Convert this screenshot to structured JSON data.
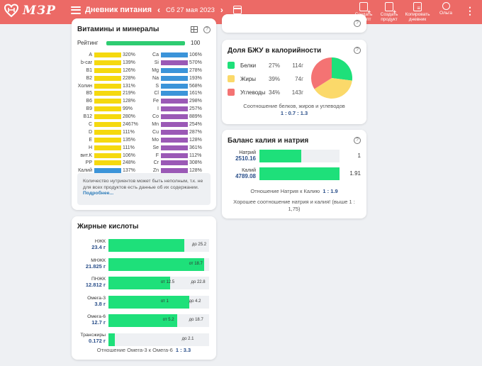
{
  "app": {
    "logo_text": "МЗР",
    "page_title": "Дневник питания",
    "date": "Сб 27 мая 2023"
  },
  "actions": [
    {
      "label": "Создать рецепт",
      "icon": "create-recipe-icon"
    },
    {
      "label": "Создать продукт",
      "icon": "create-product-icon"
    },
    {
      "label": "Копировать дневник",
      "icon": "copy-diary-icon"
    },
    {
      "label": "Ольга",
      "icon": "user-icon"
    }
  ],
  "vitamins": {
    "title": "Витамины и минералы",
    "rating_label": "Рейтинг",
    "rating_value": "100",
    "rating_fraction": 1.0,
    "left": [
      {
        "name": "A",
        "pct": "320%",
        "color": "#f5d90f"
      },
      {
        "name": "b-car",
        "pct": "139%",
        "color": "#f5d90f"
      },
      {
        "name": "B1",
        "pct": "126%",
        "color": "#f5d90f"
      },
      {
        "name": "B2",
        "pct": "228%",
        "color": "#f5d90f"
      },
      {
        "name": "Холин",
        "pct": "131%",
        "color": "#f5d90f"
      },
      {
        "name": "B5",
        "pct": "219%",
        "color": "#f5d90f"
      },
      {
        "name": "B6",
        "pct": "128%",
        "color": "#f5d90f"
      },
      {
        "name": "B9",
        "pct": "99%",
        "color": "#f5d90f"
      },
      {
        "name": "B12",
        "pct": "280%",
        "color": "#f5d90f"
      },
      {
        "name": "C",
        "pct": "2467%",
        "color": "#f5d90f"
      },
      {
        "name": "D",
        "pct": "111%",
        "color": "#f5d90f"
      },
      {
        "name": "E",
        "pct": "135%",
        "color": "#f5d90f"
      },
      {
        "name": "H",
        "pct": "111%",
        "color": "#f5d90f"
      },
      {
        "name": "вит.K",
        "pct": "106%",
        "color": "#f5d90f"
      },
      {
        "name": "PP",
        "pct": "248%",
        "color": "#f5d90f"
      },
      {
        "name": "Калий",
        "pct": "137%",
        "color": "#3b94d9"
      }
    ],
    "right": [
      {
        "name": "Ca",
        "pct": "106%",
        "color": "#3b94d9"
      },
      {
        "name": "Si",
        "pct": "570%",
        "color": "#9b59b6"
      },
      {
        "name": "Mg",
        "pct": "278%",
        "color": "#3b94d9"
      },
      {
        "name": "Na",
        "pct": "193%",
        "color": "#3b94d9"
      },
      {
        "name": "S",
        "pct": "568%",
        "color": "#3b94d9"
      },
      {
        "name": "Cl",
        "pct": "161%",
        "color": "#3b94d9"
      },
      {
        "name": "Fe",
        "pct": "298%",
        "color": "#9b59b6"
      },
      {
        "name": "I",
        "pct": "257%",
        "color": "#9b59b6"
      },
      {
        "name": "Co",
        "pct": "889%",
        "color": "#9b59b6"
      },
      {
        "name": "Mn",
        "pct": "254%",
        "color": "#9b59b6"
      },
      {
        "name": "Cu",
        "pct": "287%",
        "color": "#9b59b6"
      },
      {
        "name": "Mo",
        "pct": "128%",
        "color": "#9b59b6"
      },
      {
        "name": "Se",
        "pct": "361%",
        "color": "#9b59b6"
      },
      {
        "name": "F",
        "pct": "112%",
        "color": "#9b59b6"
      },
      {
        "name": "Cr",
        "pct": "308%",
        "color": "#9b59b6"
      },
      {
        "name": "Zn",
        "pct": "128%",
        "color": "#9b59b6"
      }
    ],
    "note_text": "Количество нутриентов может быть неполным, т.к. не для всех продуктов есть данные об их содержании.",
    "note_link": "Подробнее..."
  },
  "fatty": {
    "title": "Жирные кислоты",
    "rows": [
      {
        "name": "НЖК",
        "value": "23.4 г",
        "fill": 0.75,
        "marks": [
          {
            "text": "до 25.2",
            "pos": 0.83
          }
        ]
      },
      {
        "name": "МНЖК",
        "value": "21.825 г",
        "fill": 0.95,
        "marks": [
          {
            "text": "от 18.7",
            "pos": 0.8
          }
        ]
      },
      {
        "name": "ПНЖК",
        "value": "12.812 г",
        "fill": 0.61,
        "marks": [
          {
            "text": "от 12.5",
            "pos": 0.52
          },
          {
            "text": "до 22.8",
            "pos": 0.82
          }
        ]
      },
      {
        "name": "Омега-3",
        "value": "3.8 г",
        "fill": 0.8,
        "marks": [
          {
            "text": "от 1",
            "pos": 0.52
          },
          {
            "text": "до 4.2",
            "pos": 0.8
          }
        ]
      },
      {
        "name": "Омега-6",
        "value": "12.7 г",
        "fill": 0.68,
        "marks": [
          {
            "text": "от 5.2",
            "pos": 0.54
          },
          {
            "text": "до 18.7",
            "pos": 0.8
          }
        ]
      },
      {
        "name": "Трансжиры",
        "value": "0.172 г",
        "fill": 0.06,
        "marks": [
          {
            "text": "до 2.1",
            "pos": 0.73
          }
        ]
      }
    ],
    "ratio_label": "Отношение Омега-3 к Омега-6",
    "ratio_value": "1 : 3.3"
  },
  "bzu": {
    "title": "Доля БЖУ в калорийности",
    "items": [
      {
        "name": "Белки",
        "pct": "27%",
        "grams": "114г",
        "color": "#1ee07a",
        "share": 27
      },
      {
        "name": "Жиры",
        "pct": "39%",
        "grams": "74г",
        "color": "#fbd96a",
        "share": 39
      },
      {
        "name": "Углеводы",
        "pct": "34%",
        "grams": "143г",
        "color": "#f47373",
        "share": 34
      }
    ],
    "ratio_label": "Соотношение белков, жиров и углеводов",
    "ratio_value": "1 : 0.7 : 1.3"
  },
  "kna": {
    "title": "Баланс калия и натрия",
    "rows": [
      {
        "name": "Натрий",
        "value": "2510.16",
        "fill": 0.52,
        "ratio": "1"
      },
      {
        "name": "Калий",
        "value": "4789.08",
        "fill": 1.0,
        "ratio": "1.91"
      }
    ],
    "ratio_label": "Отношение Натрия к Калию",
    "ratio_value": "1 : 1.9",
    "note": "Хорошее соотношение натрия и калия! (выше 1 : 1,75)"
  }
}
